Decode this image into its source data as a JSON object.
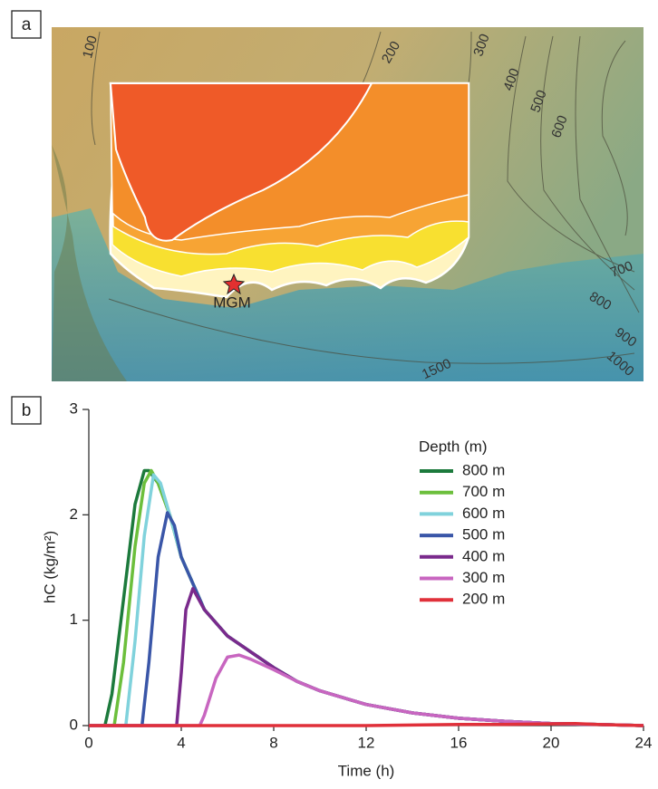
{
  "map": {
    "panel_label": "a",
    "site": "MGM",
    "contour_labels": [
      "100",
      "200",
      "300",
      "400",
      "500",
      "600",
      "700",
      "800",
      "900",
      "1000",
      "1500"
    ]
  },
  "chart_data": {
    "type": "line",
    "panel_label": "b",
    "x_label": "Time (h)",
    "y_label": "hC (kg/m²)",
    "legend_title": "Depth (m)",
    "xlim": [
      0,
      24
    ],
    "xticks": [
      0,
      4,
      8,
      12,
      16,
      20,
      24
    ],
    "ylim": [
      0,
      3
    ],
    "yticks": [
      0,
      1,
      2,
      3
    ],
    "series": [
      {
        "name": "800 m",
        "color": "#1c7a3c",
        "x": [
          0,
          0.7,
          1,
          1.5,
          2,
          2.4,
          2.6,
          3,
          3.5,
          4,
          4.6,
          5,
          6,
          7,
          8,
          9,
          10,
          12,
          14,
          16,
          18,
          20,
          22,
          24
        ],
        "values": [
          0,
          0,
          0.3,
          1.2,
          2.1,
          2.42,
          2.42,
          2.3,
          2.0,
          1.6,
          1.3,
          1.1,
          0.85,
          0.7,
          0.55,
          0.42,
          0.33,
          0.2,
          0.12,
          0.07,
          0.04,
          0.02,
          0.01,
          0
        ]
      },
      {
        "name": "700 m",
        "color": "#6cbf3c",
        "x": [
          0,
          1.1,
          1.5,
          2,
          2.4,
          2.7,
          3,
          3.5,
          4,
          4.6,
          5,
          6,
          7,
          8,
          9,
          10,
          12,
          14,
          16,
          18,
          20,
          22,
          24
        ],
        "values": [
          0,
          0,
          0.6,
          1.7,
          2.3,
          2.42,
          2.3,
          2.0,
          1.6,
          1.3,
          1.1,
          0.85,
          0.7,
          0.55,
          0.42,
          0.33,
          0.2,
          0.12,
          0.07,
          0.04,
          0.02,
          0.01,
          0
        ]
      },
      {
        "name": "600 m",
        "color": "#80d2dc",
        "x": [
          0,
          1.6,
          2,
          2.4,
          2.8,
          3.1,
          3.5,
          4,
          4.6,
          5,
          6,
          7,
          8,
          9,
          10,
          12,
          14,
          16,
          18,
          20,
          22,
          24
        ],
        "values": [
          0,
          0,
          0.8,
          1.8,
          2.38,
          2.3,
          2.0,
          1.6,
          1.3,
          1.1,
          0.85,
          0.7,
          0.55,
          0.42,
          0.33,
          0.2,
          0.12,
          0.07,
          0.04,
          0.02,
          0.01,
          0
        ]
      },
      {
        "name": "500 m",
        "color": "#3a56a8",
        "x": [
          0,
          2.3,
          2.6,
          3,
          3.4,
          3.7,
          4,
          4.6,
          5,
          6,
          7,
          8,
          9,
          10,
          12,
          14,
          16,
          18,
          20,
          22,
          24
        ],
        "values": [
          0,
          0,
          0.6,
          1.6,
          2.02,
          1.9,
          1.6,
          1.3,
          1.1,
          0.85,
          0.7,
          0.55,
          0.42,
          0.33,
          0.2,
          0.12,
          0.07,
          0.04,
          0.02,
          0.01,
          0
        ]
      },
      {
        "name": "400 m",
        "color": "#7a2a8c",
        "x": [
          0,
          3.8,
          4,
          4.2,
          4.5,
          5,
          6,
          7,
          8,
          9,
          10,
          12,
          14,
          16,
          18,
          20,
          22,
          24
        ],
        "values": [
          0,
          0,
          0.5,
          1.1,
          1.3,
          1.1,
          0.85,
          0.7,
          0.55,
          0.42,
          0.33,
          0.2,
          0.12,
          0.07,
          0.04,
          0.02,
          0.01,
          0
        ]
      },
      {
        "name": "300 m",
        "color": "#c866c0",
        "x": [
          0,
          4.8,
          5,
          5.5,
          6,
          6.5,
          7,
          8,
          9,
          10,
          12,
          14,
          16,
          18,
          20,
          22,
          24
        ],
        "values": [
          0,
          0,
          0.1,
          0.45,
          0.65,
          0.67,
          0.63,
          0.53,
          0.42,
          0.33,
          0.2,
          0.12,
          0.07,
          0.04,
          0.02,
          0.01,
          0
        ]
      },
      {
        "name": "200 m",
        "color": "#e0303a",
        "x": [
          0,
          12,
          16,
          18,
          21,
          22,
          24
        ],
        "values": [
          0,
          0,
          0.01,
          0.01,
          0.02,
          0.01,
          0
        ]
      }
    ]
  }
}
